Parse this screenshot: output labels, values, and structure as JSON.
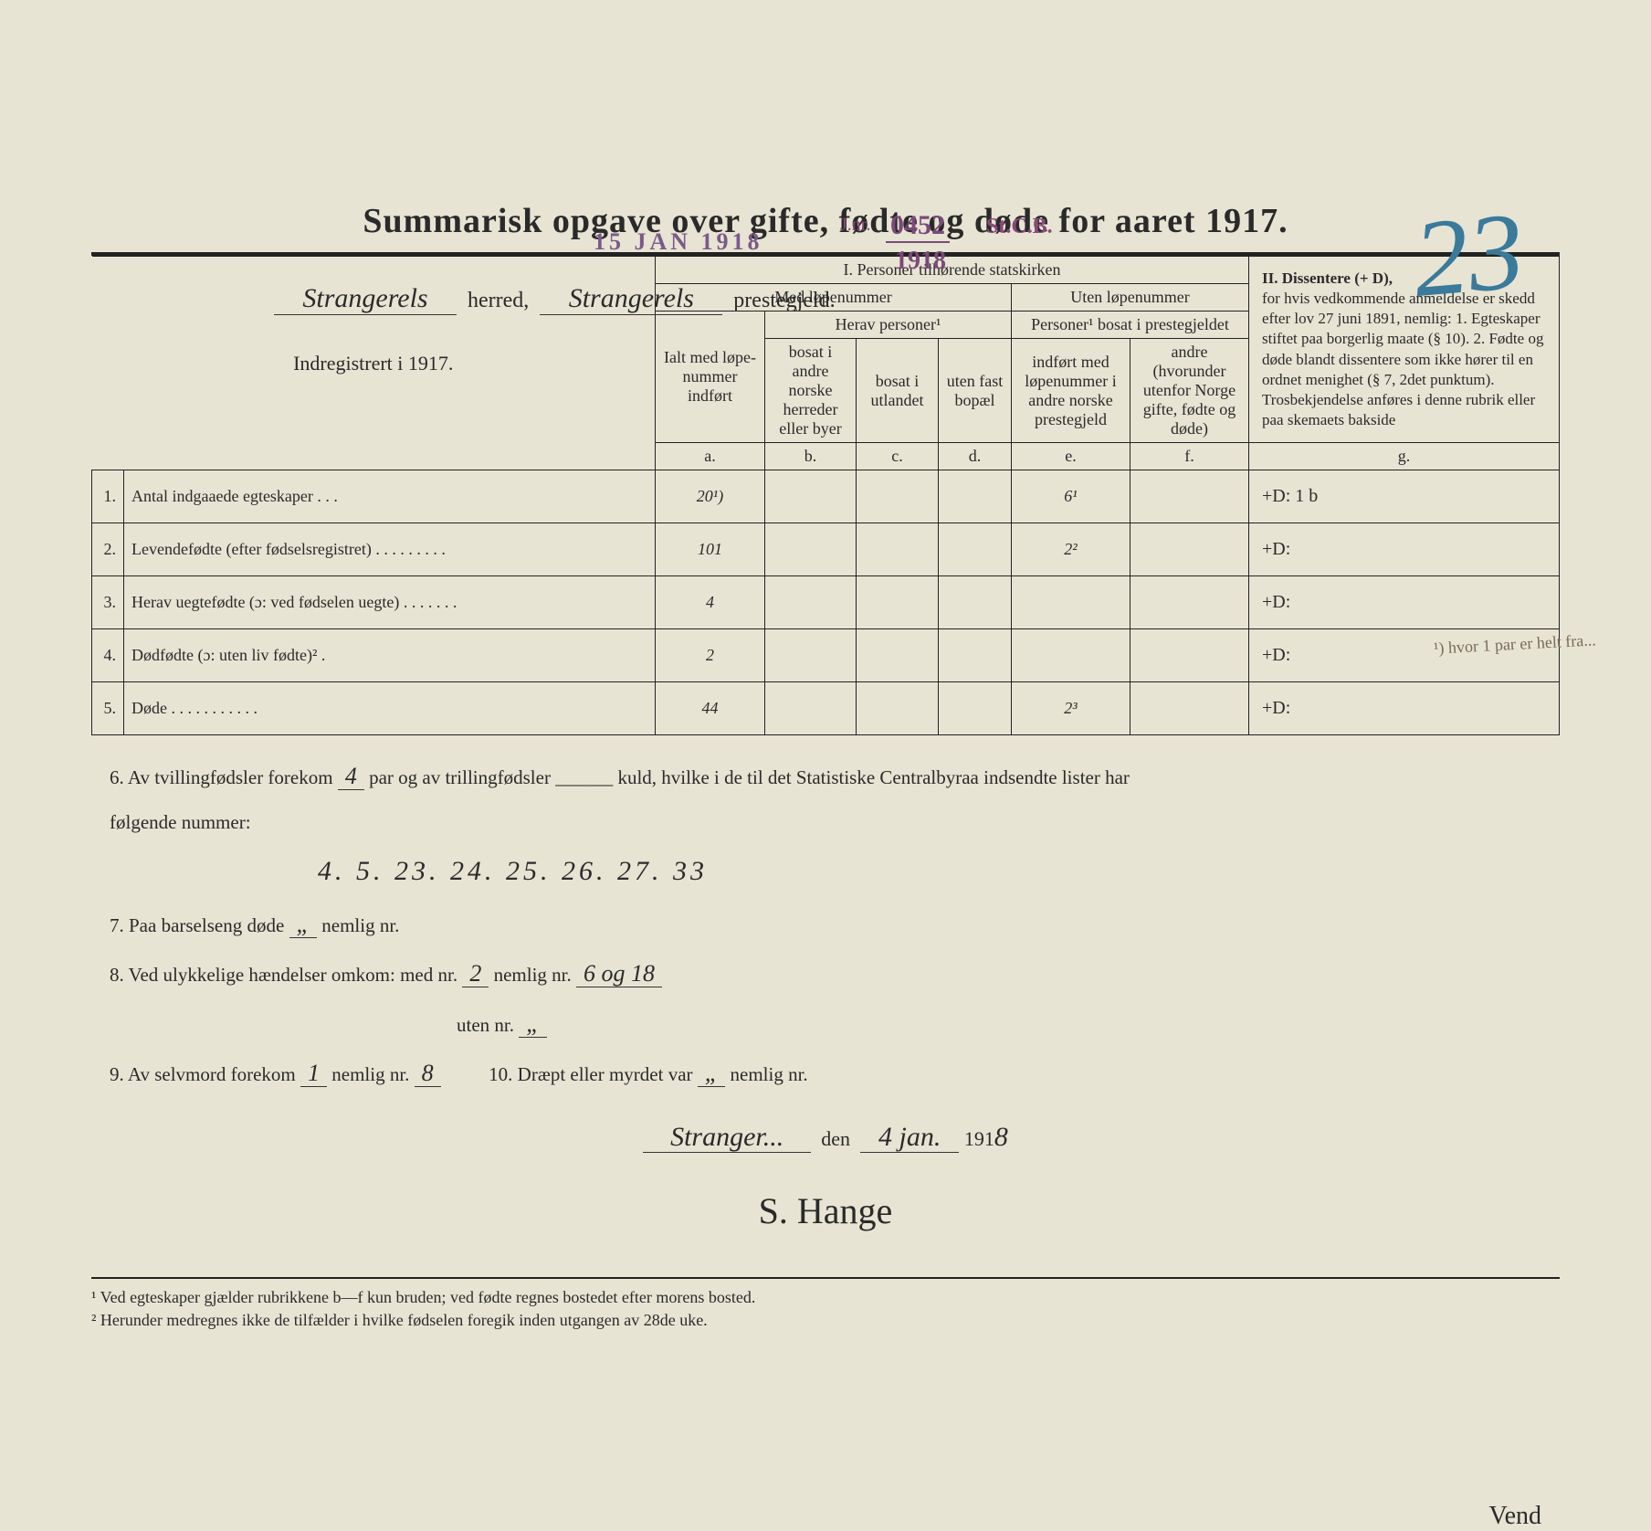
{
  "stamps": {
    "receipt_date": "15 JAN 1918",
    "j_label": "J.nr.",
    "ref_number": "0452",
    "office": "St.C.B.",
    "year": "1918",
    "page_number": "23"
  },
  "header": {
    "herred_value": "Strangerels",
    "herred_label": "herred,",
    "prestegjeld_value": "Strangerels",
    "prestegjeld_label": "prestegjeld."
  },
  "title": "Summarisk opgave over gifte, fødte og døde for aaret 1917.",
  "table": {
    "col0_header": "Indregistrert i 1917.",
    "section1_title": "I.  Personer tilhørende statskirken",
    "section1_sub_a": "Med løpenummer",
    "section1_sub_b": "Uten løpenummer",
    "herav": "Herav personer¹",
    "personer_bosat": "Personer¹ bosat i prestegjeldet",
    "col_a": "Ialt med løpe-nummer indført",
    "col_b": "bosat i andre norske herreder eller byer",
    "col_c": "bosat i utlandet",
    "col_d": "uten fast bopæl",
    "col_e": "indført med løpenummer i andre norske prestegjeld",
    "col_f": "andre (hvorunder utenfor Norge gifte, fødte og døde)",
    "section2_title": "II.  Dissentere (+ D),",
    "section2_body": "for hvis vedkommende anmeldelse er skedd efter lov 27 juni 1891, nemlig: 1. Egteskaper stiftet paa borgerlig maate (§ 10). 2. Fødte og døde blandt dissentere som ikke hører til en ordnet menighet (§ 7, 2det punktum). Trosbekjendelse anføres i denne rubrik eller paa skemaets bakside",
    "letters": [
      "a.",
      "b.",
      "c.",
      "d.",
      "e.",
      "f.",
      "g."
    ],
    "rows": [
      {
        "n": "1.",
        "label": "Antal indgaaede egteskaper . . .",
        "a": "20¹)",
        "b": "",
        "c": "",
        "d": "",
        "e": "6¹",
        "f": "",
        "g": "+D:   1 b"
      },
      {
        "n": "2.",
        "label": "Levendefødte (efter fødselsregistret) . . . . . . . . .",
        "a": "101",
        "b": "",
        "c": "",
        "d": "",
        "e": "2²",
        "f": "",
        "g": "+D:"
      },
      {
        "n": "3.",
        "label": "Herav uegtefødte (ɔ: ved fødselen uegte) . . . . . . .",
        "a": "4",
        "b": "",
        "c": "",
        "d": "",
        "e": "",
        "f": "",
        "g": "+D:"
      },
      {
        "n": "4.",
        "label": "Dødfødte (ɔ: uten liv fødte)² .",
        "a": "2",
        "b": "",
        "c": "",
        "d": "",
        "e": "",
        "f": "",
        "g": "+D:"
      },
      {
        "n": "5.",
        "label": "Døde . . . . . . . . . . .",
        "a": "44",
        "b": "",
        "c": "",
        "d": "",
        "e": "2³",
        "f": "",
        "g": "+D:"
      }
    ]
  },
  "notes": {
    "line6a": "6.   Av tvillingfødsler forekom",
    "line6_twins": "4",
    "line6b": "par og av trillingfødsler ______ kuld, hvilke i de til det Statistiske Centralbyraa indsendte lister har",
    "line6c": "følgende nummer:",
    "line6_numbers": "4. 5. 23. 24. 25. 26. 27. 33",
    "line7": "7.   Paa barselseng døde",
    "line7_val": "„",
    "line7b": "nemlig nr.",
    "line8": "8.   Ved ulykkelige hændelser omkom:  med nr.",
    "line8_med": "2",
    "line8b": "nemlig nr.",
    "line8_nemlig": "6 og 18",
    "line8c": "uten nr.",
    "line8_uten": "„",
    "line9": "9.   Av selvmord forekom",
    "line9_val": "1",
    "line9b": "nemlig nr.",
    "line9_nr": "8",
    "line10": "10.  Dræpt eller myrdet var",
    "line10_val": "„",
    "line10b": "nemlig nr.",
    "place": "Stranger...",
    "date_den": "den",
    "date_day": "4 jan.",
    "date_year_prefix": "191",
    "date_year_suffix": "8",
    "signature": "S. Hange"
  },
  "footnotes": {
    "f1": "¹ Ved egteskaper gjælder rubrikkene b—f kun bruden; ved fødte regnes bostedet efter morens bosted.",
    "f2": "² Herunder medregnes ikke de tilfælder i hvilke fødselen foregik inden utgangen av 28de uke."
  },
  "margin_note": "¹) hvor 1 par er helt fra...",
  "vend": "Vend"
}
